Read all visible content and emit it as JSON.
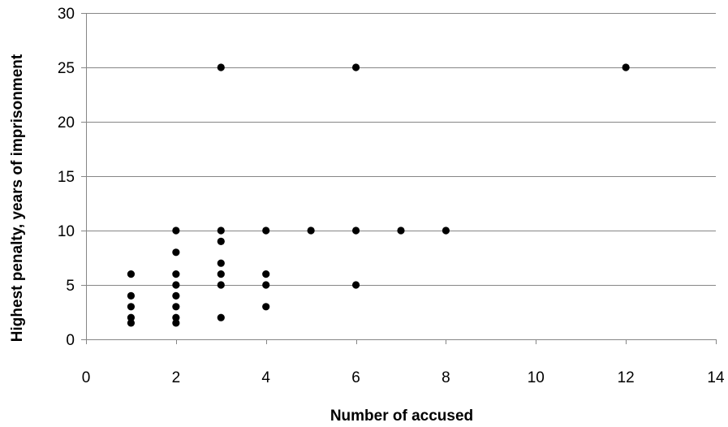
{
  "chart_data": {
    "type": "scatter",
    "title": "",
    "xlabel": "Number of accused",
    "ylabel": "Highest penalty, years of imprisonment",
    "xlim": [
      0,
      14
    ],
    "ylim": [
      0,
      30
    ],
    "xticks": [
      0,
      2,
      4,
      6,
      8,
      10,
      12,
      14
    ],
    "yticks": [
      0,
      5,
      10,
      15,
      20,
      25,
      30
    ],
    "grid": "horizontal",
    "legend": "none",
    "marker_color": "#000000",
    "grid_color": "#868686",
    "points": [
      {
        "x": 1,
        "y": 6
      },
      {
        "x": 1,
        "y": 4
      },
      {
        "x": 1,
        "y": 3
      },
      {
        "x": 1,
        "y": 2
      },
      {
        "x": 1,
        "y": 1.5
      },
      {
        "x": 2,
        "y": 10
      },
      {
        "x": 2,
        "y": 8
      },
      {
        "x": 2,
        "y": 6
      },
      {
        "x": 2,
        "y": 5
      },
      {
        "x": 2,
        "y": 4
      },
      {
        "x": 2,
        "y": 3
      },
      {
        "x": 2,
        "y": 2
      },
      {
        "x": 2,
        "y": 1.5
      },
      {
        "x": 3,
        "y": 25
      },
      {
        "x": 3,
        "y": 10
      },
      {
        "x": 3,
        "y": 9
      },
      {
        "x": 3,
        "y": 7
      },
      {
        "x": 3,
        "y": 6
      },
      {
        "x": 3,
        "y": 5
      },
      {
        "x": 3,
        "y": 2
      },
      {
        "x": 4,
        "y": 10
      },
      {
        "x": 4,
        "y": 6
      },
      {
        "x": 4,
        "y": 5
      },
      {
        "x": 4,
        "y": 3
      },
      {
        "x": 5,
        "y": 10
      },
      {
        "x": 6,
        "y": 25
      },
      {
        "x": 6,
        "y": 10
      },
      {
        "x": 6,
        "y": 5
      },
      {
        "x": 7,
        "y": 10
      },
      {
        "x": 8,
        "y": 10
      },
      {
        "x": 12,
        "y": 25
      }
    ]
  }
}
